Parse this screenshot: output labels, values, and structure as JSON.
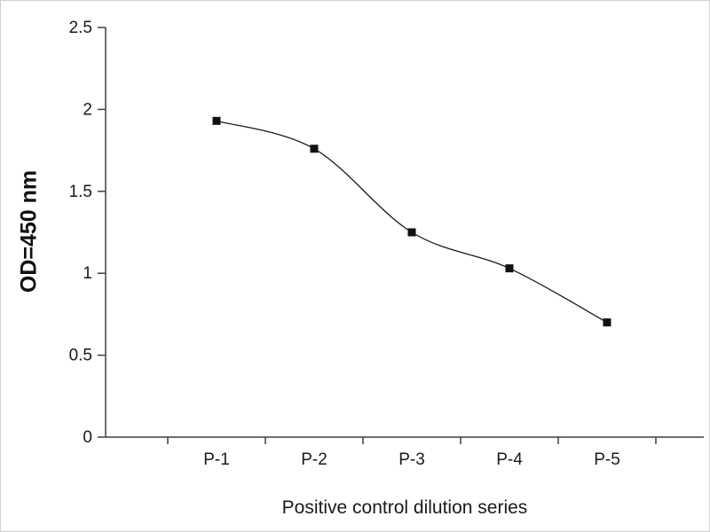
{
  "chart_data": {
    "type": "line",
    "categories": [
      "P-1",
      "P-2",
      "P-3",
      "P-4",
      "P-5"
    ],
    "values": [
      1.93,
      1.76,
      1.25,
      1.03,
      0.7
    ],
    "xlabel": "Positive control dilution series",
    "ylabel": "OD=450 nm",
    "ylim": [
      0,
      2.5
    ],
    "yticks": [
      0,
      0.5,
      1,
      1.5,
      2,
      2.5
    ],
    "ytick_labels": [
      "0",
      "0.5",
      "1",
      "1.5",
      "2",
      "2.5"
    ],
    "grid": false,
    "legend": false,
    "marker": "square",
    "line_color": "#1a1a1a",
    "marker_color": "#111111",
    "axis_color": "#3f3f3f"
  }
}
